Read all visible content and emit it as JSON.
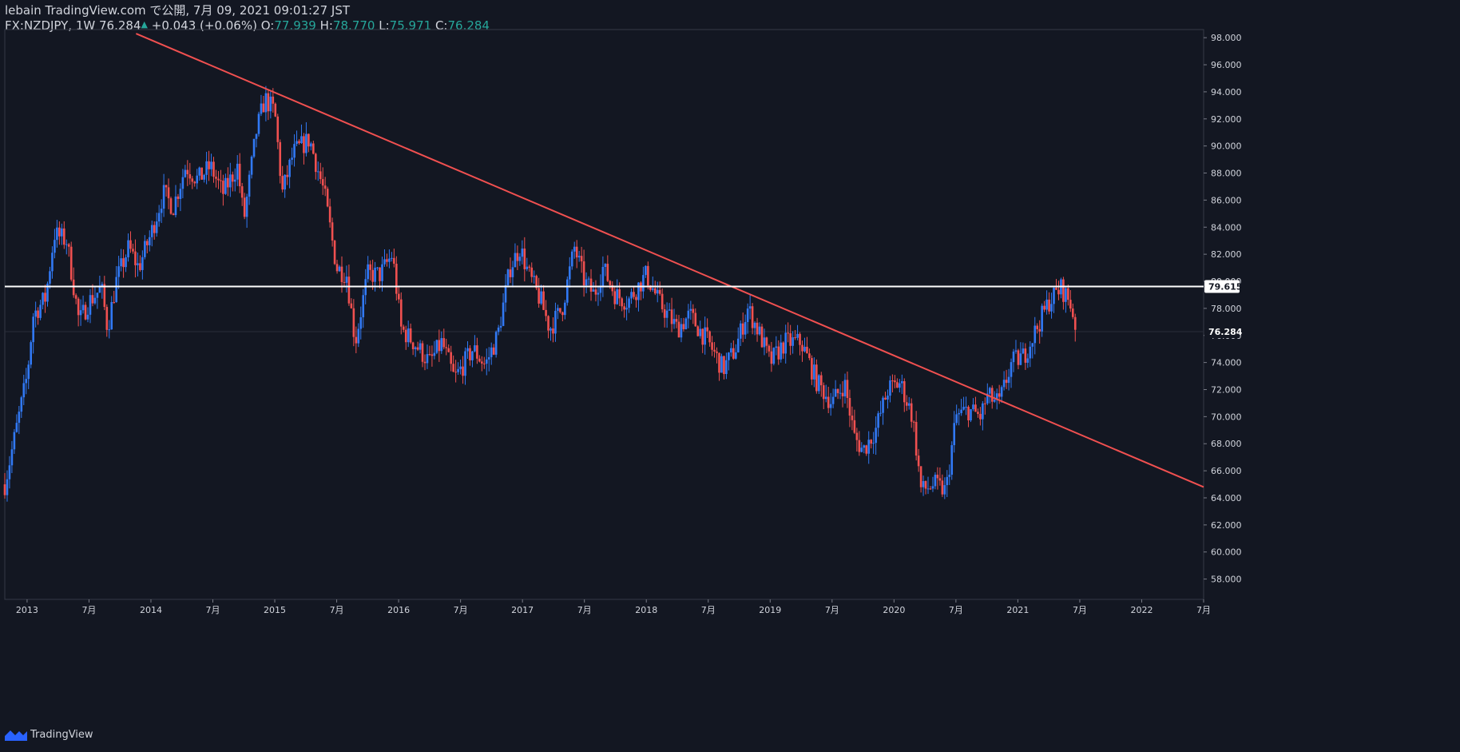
{
  "header": {
    "line1": "lebain TradingView.com で公開, 7月 09, 2021 09:01:27 JST",
    "symbol_interval": "FX:NZDJPY, 1W",
    "last": "76.284",
    "change": "+0.043 (+0.06%)",
    "o_label": "O:",
    "o_value": "77.939",
    "h_label": "H:",
    "h_value": "78.770",
    "l_label": "L:",
    "l_value": "75.971",
    "c_label": "C:",
    "c_value": "76.284"
  },
  "footer": {
    "brand": "TradingView"
  },
  "colors": {
    "up": "#3179f5",
    "down": "#f05050",
    "background": "#131722",
    "trendline": "#f05050",
    "level": "#ffffff"
  },
  "chart_data": {
    "type": "candlestick",
    "symbol": "FX:NZDJPY",
    "interval": "1W",
    "ylim": [
      56.5,
      98.6
    ],
    "yticks": [
      "58.000",
      "60.000",
      "62.000",
      "64.000",
      "66.000",
      "68.000",
      "70.000",
      "72.000",
      "74.000",
      "76.000",
      "78.000",
      "80.000",
      "82.000",
      "84.000",
      "86.000",
      "88.000",
      "90.000",
      "92.000",
      "94.000",
      "96.000",
      "98.000"
    ],
    "xticks": [
      {
        "t": 2013.0,
        "label": "2013"
      },
      {
        "t": 2013.5,
        "label": "7月"
      },
      {
        "t": 2014.0,
        "label": "2014"
      },
      {
        "t": 2014.5,
        "label": "7月"
      },
      {
        "t": 2015.0,
        "label": "2015"
      },
      {
        "t": 2015.5,
        "label": "7月"
      },
      {
        "t": 2016.0,
        "label": "2016"
      },
      {
        "t": 2016.5,
        "label": "7月"
      },
      {
        "t": 2017.0,
        "label": "2017"
      },
      {
        "t": 2017.5,
        "label": "7月"
      },
      {
        "t": 2018.0,
        "label": "2018"
      },
      {
        "t": 2018.5,
        "label": "7月"
      },
      {
        "t": 2019.0,
        "label": "2019"
      },
      {
        "t": 2019.5,
        "label": "7月"
      },
      {
        "t": 2020.0,
        "label": "2020"
      },
      {
        "t": 2020.5,
        "label": "7月"
      },
      {
        "t": 2021.0,
        "label": "2021"
      },
      {
        "t": 2021.5,
        "label": "7月"
      },
      {
        "t": 2022.0,
        "label": "2022"
      },
      {
        "t": 2022.5,
        "label": "7月"
      }
    ],
    "level_line": {
      "value": 79.615,
      "label": "79.615"
    },
    "last_price": {
      "value": 76.284,
      "label": "76.284"
    },
    "trendline": {
      "points": [
        [
          2013.88,
          98.3
        ],
        [
          2022.5,
          64.8
        ]
      ]
    },
    "close_path": [
      [
        2012.82,
        65.0
      ],
      [
        2012.9,
        68.5
      ],
      [
        2013.0,
        73.0
      ],
      [
        2013.05,
        77.5
      ],
      [
        2013.15,
        78.8
      ],
      [
        2013.22,
        83.5
      ],
      [
        2013.32,
        83.0
      ],
      [
        2013.42,
        77.0
      ],
      [
        2013.5,
        78.5
      ],
      [
        2013.6,
        79.5
      ],
      [
        2013.65,
        76.5
      ],
      [
        2013.72,
        80.0
      ],
      [
        2013.82,
        82.5
      ],
      [
        2013.9,
        81.0
      ],
      [
        2014.0,
        83.5
      ],
      [
        2014.1,
        86.5
      ],
      [
        2014.18,
        85.5
      ],
      [
        2014.28,
        88.5
      ],
      [
        2014.38,
        87.5
      ],
      [
        2014.48,
        88.5
      ],
      [
        2014.58,
        86.5
      ],
      [
        2014.7,
        88.5
      ],
      [
        2014.75,
        84.5
      ],
      [
        2014.85,
        91.0
      ],
      [
        2014.92,
        93.5
      ],
      [
        2015.0,
        92.5
      ],
      [
        2015.06,
        86.5
      ],
      [
        2015.15,
        89.5
      ],
      [
        2015.28,
        90.5
      ],
      [
        2015.4,
        86.5
      ],
      [
        2015.5,
        81.0
      ],
      [
        2015.58,
        80.5
      ],
      [
        2015.65,
        75.5
      ],
      [
        2015.75,
        80.5
      ],
      [
        2015.85,
        80.5
      ],
      [
        2015.95,
        82.0
      ],
      [
        2016.02,
        76.5
      ],
      [
        2016.12,
        75.5
      ],
      [
        2016.25,
        74.0
      ],
      [
        2016.35,
        75.5
      ],
      [
        2016.45,
        72.8
      ],
      [
        2016.5,
        73.5
      ],
      [
        2016.6,
        75.0
      ],
      [
        2016.7,
        73.8
      ],
      [
        2016.8,
        76.0
      ],
      [
        2016.9,
        81.0
      ],
      [
        2016.98,
        82.5
      ],
      [
        2017.05,
        80.5
      ],
      [
        2017.15,
        78.5
      ],
      [
        2017.22,
        76.5
      ],
      [
        2017.32,
        78.0
      ],
      [
        2017.42,
        82.5
      ],
      [
        2017.5,
        80.0
      ],
      [
        2017.58,
        79.0
      ],
      [
        2017.65,
        81.0
      ],
      [
        2017.75,
        79.0
      ],
      [
        2017.85,
        78.5
      ],
      [
        2018.0,
        80.5
      ],
      [
        2018.1,
        78.5
      ],
      [
        2018.25,
        76.5
      ],
      [
        2018.35,
        77.5
      ],
      [
        2018.5,
        75.5
      ],
      [
        2018.62,
        73.5
      ],
      [
        2018.72,
        75.0
      ],
      [
        2018.82,
        78.0
      ],
      [
        2018.92,
        76.0
      ],
      [
        2019.0,
        74.0
      ],
      [
        2019.12,
        75.5
      ],
      [
        2019.25,
        75.5
      ],
      [
        2019.38,
        72.5
      ],
      [
        2019.5,
        71.0
      ],
      [
        2019.6,
        72.5
      ],
      [
        2019.68,
        68.5
      ],
      [
        2019.75,
        67.5
      ],
      [
        2019.85,
        69.0
      ],
      [
        2019.95,
        72.0
      ],
      [
        2020.05,
        72.5
      ],
      [
        2020.15,
        70.0
      ],
      [
        2020.22,
        64.5
      ],
      [
        2020.32,
        65.0
      ],
      [
        2020.42,
        64.5
      ],
      [
        2020.5,
        70.0
      ],
      [
        2020.6,
        70.5
      ],
      [
        2020.7,
        70.0
      ],
      [
        2020.75,
        71.5
      ],
      [
        2020.85,
        71.0
      ],
      [
        2020.95,
        74.0
      ],
      [
        2021.05,
        74.5
      ],
      [
        2021.15,
        76.5
      ],
      [
        2021.25,
        78.5
      ],
      [
        2021.35,
        79.5
      ],
      [
        2021.42,
        78.5
      ],
      [
        2021.48,
        76.284
      ]
    ]
  }
}
